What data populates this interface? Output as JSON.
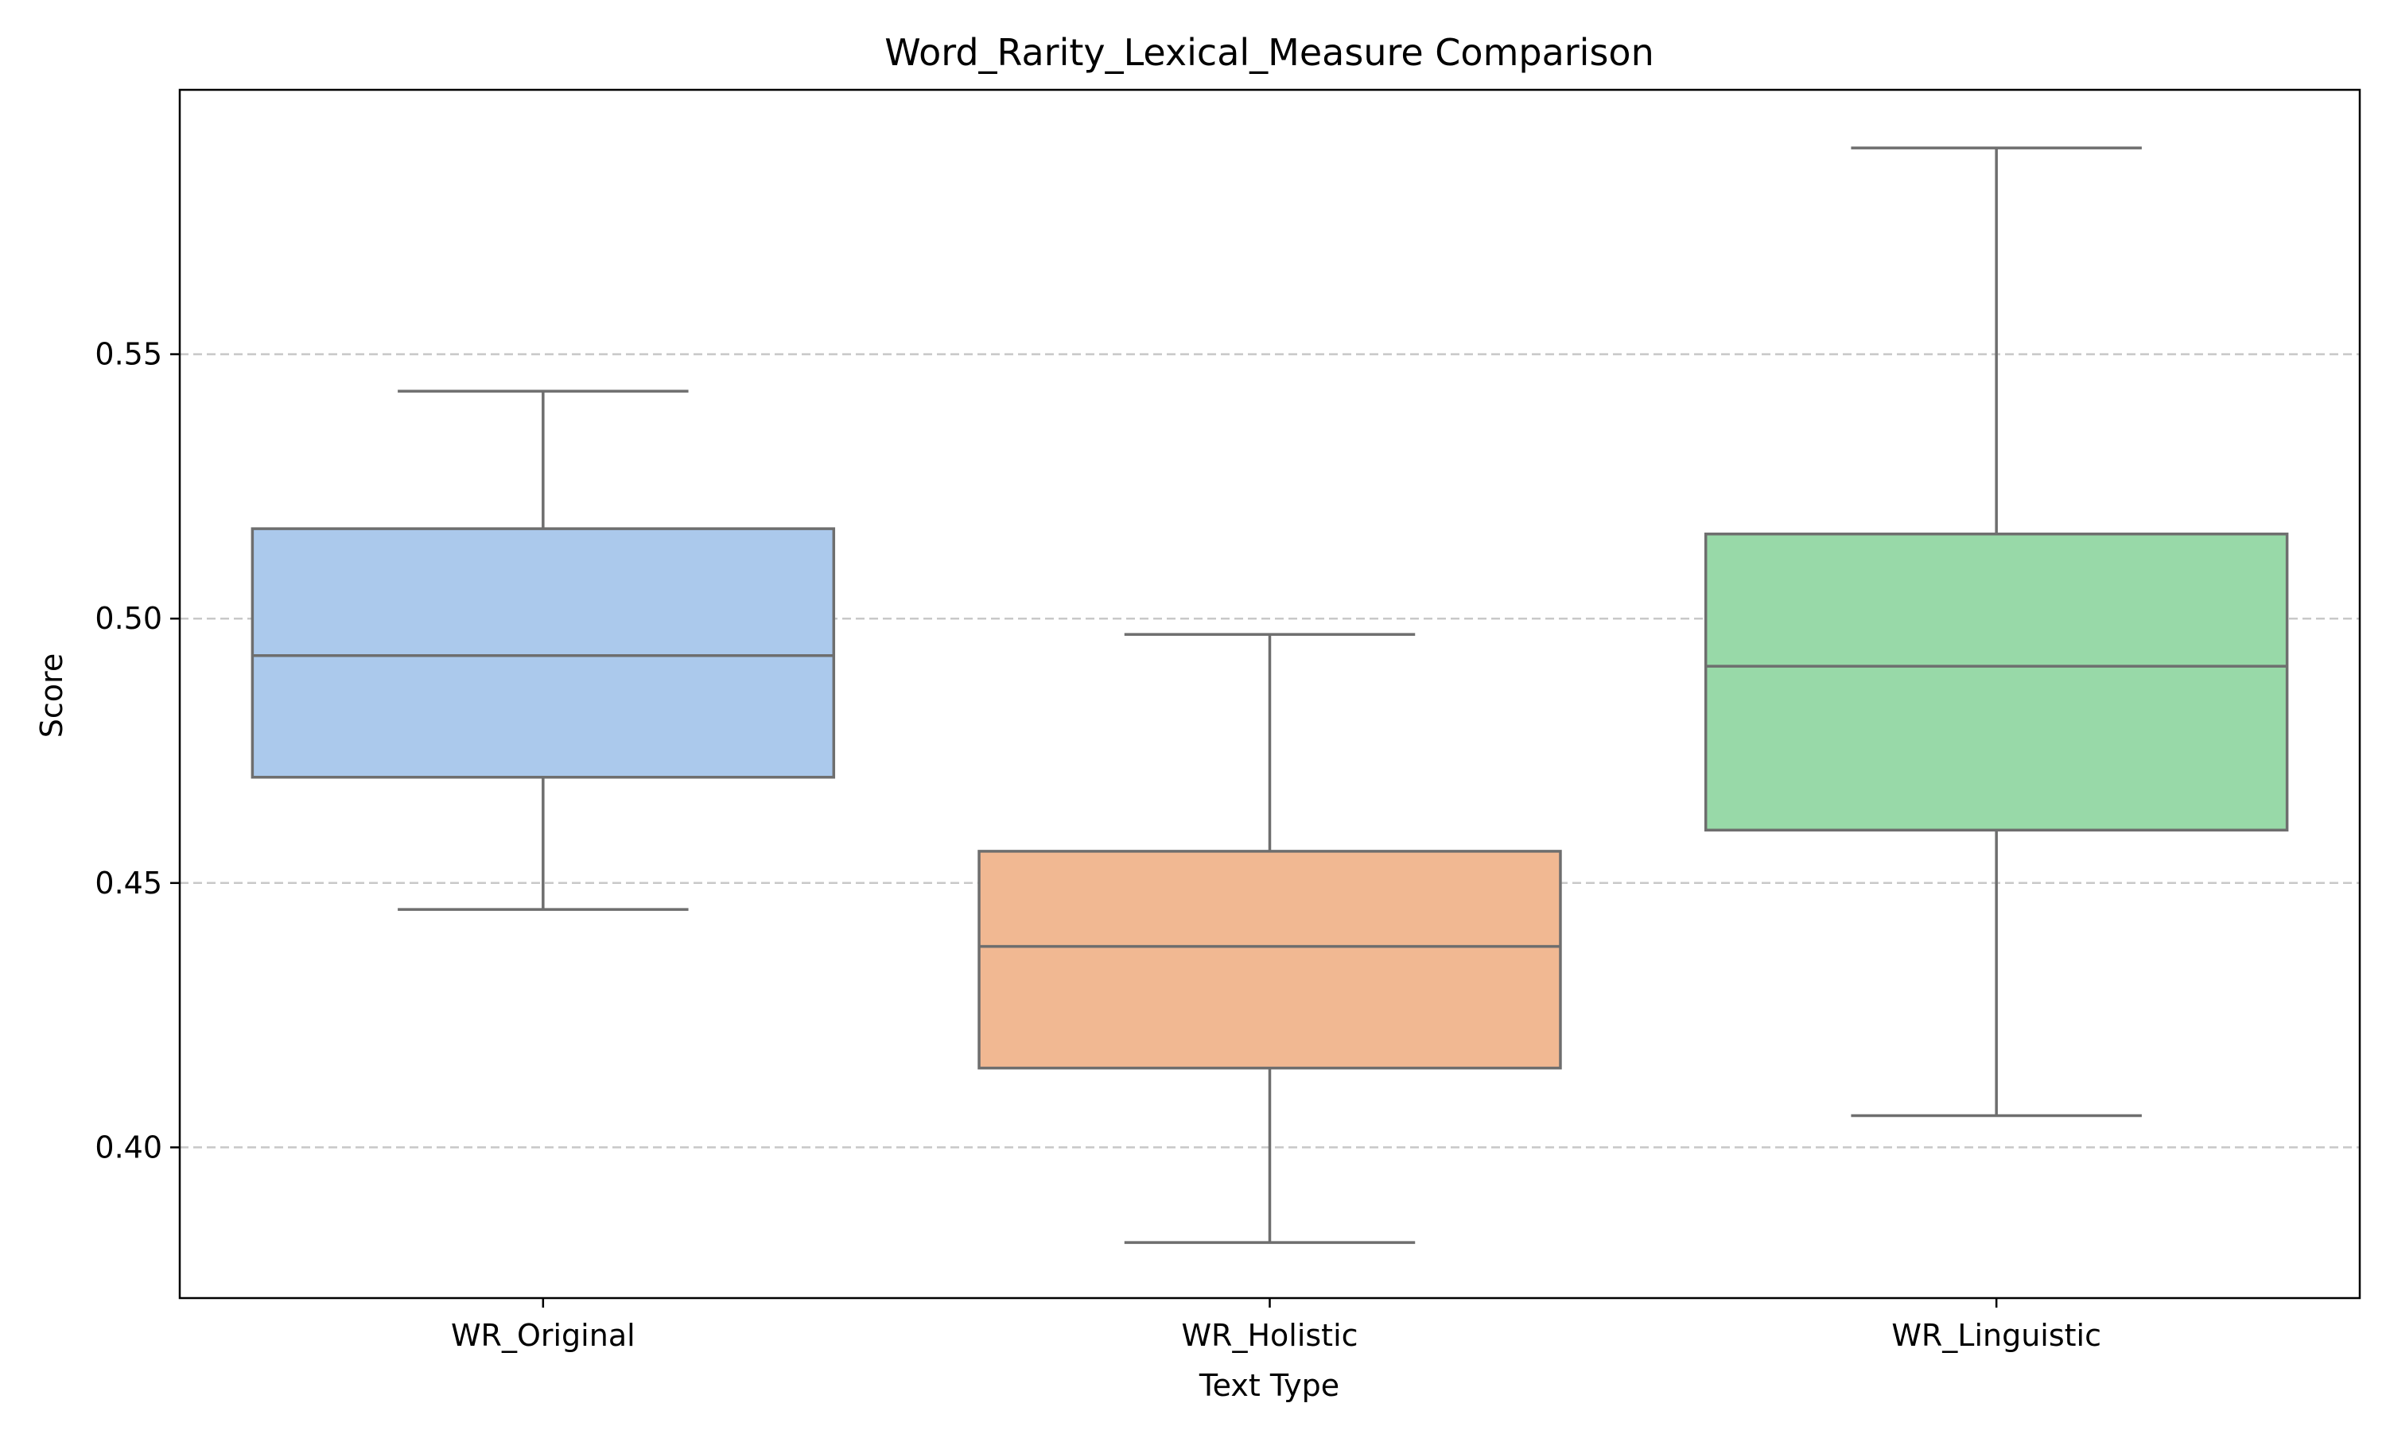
{
  "chart_data": {
    "type": "box",
    "title": "Word_Rarity_Lexical_Measure Comparison",
    "xlabel": "Text Type",
    "ylabel": "Score",
    "ylim": [
      0.3715,
      0.6
    ],
    "yticks": [
      0.4,
      0.45,
      0.5,
      0.55
    ],
    "ytick_labels": [
      "0.40",
      "0.45",
      "0.50",
      "0.55"
    ],
    "grid": "y-dashed",
    "legend": "none",
    "categories": [
      "WR_Original",
      "WR_Holistic",
      "WR_Linguistic"
    ],
    "boxes": [
      {
        "category": "WR_Original",
        "whisker_low": 0.445,
        "q1": 0.47,
        "median": 0.493,
        "q3": 0.517,
        "whisker_high": 0.543,
        "color": "#abc9ec"
      },
      {
        "category": "WR_Holistic",
        "whisker_low": 0.382,
        "q1": 0.415,
        "median": 0.438,
        "q3": 0.456,
        "whisker_high": 0.497,
        "color": "#f1b892"
      },
      {
        "category": "WR_Linguistic",
        "whisker_low": 0.406,
        "q1": 0.46,
        "median": 0.491,
        "q3": 0.516,
        "whisker_high": 0.589,
        "color": "#98d9a8"
      }
    ],
    "colors": {
      "outline": "#6e6e6e",
      "grid": "#c8c8c8",
      "axes": "#000000"
    }
  }
}
